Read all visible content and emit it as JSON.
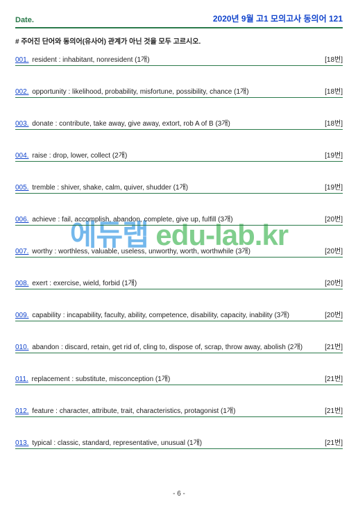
{
  "header": {
    "date_label": "Date.",
    "title": "2020년 9월 고1 모의고사  동의어 121"
  },
  "instruction": "# 주어진 단어와 동의어(유사어) 관계가 아닌 것을 모두 고르시오.",
  "items": [
    {
      "num": "001.",
      "text": "resident : inhabitant, nonresident (1개)",
      "ref": "[18번]"
    },
    {
      "num": "002.",
      "text": "opportunity : likelihood, probability, misfortune, possibility, chance (1개)",
      "ref": "[18번]"
    },
    {
      "num": "003.",
      "text": "donate : contribute, take away, give away, extort, rob A of B (3개)",
      "ref": "[18번]"
    },
    {
      "num": "004.",
      "text": "raise : drop, lower, collect (2개)",
      "ref": "[19번]"
    },
    {
      "num": "005.",
      "text": "tremble : shiver, shake, calm, quiver, shudder (1개)",
      "ref": "[19번]"
    },
    {
      "num": "006.",
      "text": "achieve : fail, accomplish, abandon, complete, give up, fulfill (3개)",
      "ref": "[20번]"
    },
    {
      "num": "007.",
      "text": "worthy : worthless, valuable, useless, unworthy, worth, worthwhile (3개)",
      "ref": "[20번]"
    },
    {
      "num": "008.",
      "text": "exert : exercise, wield, forbid (1개)",
      "ref": "[20번]"
    },
    {
      "num": "009.",
      "text": "capability : incapability, faculty, ability, competence, disability, capacity, inability (3개)",
      "ref": "[20번]"
    },
    {
      "num": "010.",
      "text": "abandon : discard, retain, get rid of, cling to, dispose of, scrap, throw away, abolish (2개)",
      "ref": "[21번]"
    },
    {
      "num": "011.",
      "text": "replacement : substitute, misconception (1개)",
      "ref": "[21번]"
    },
    {
      "num": "012.",
      "text": "feature : character, attribute, trait, characteristics, protagonist (1개)",
      "ref": "[21번]"
    },
    {
      "num": "013.",
      "text": "typical : classic, standard, representative, unusual (1개)",
      "ref": "[21번]"
    }
  ],
  "watermark": {
    "ko": "에듀랩",
    "en": " edu-lab.kr"
  },
  "footer": "- 6 -",
  "colors": {
    "rule_green": "#2a7a4a",
    "link_blue": "#1144cc",
    "wm_blue": "rgba(70,160,230,0.75)",
    "wm_green": "rgba(60,180,80,0.65)"
  }
}
